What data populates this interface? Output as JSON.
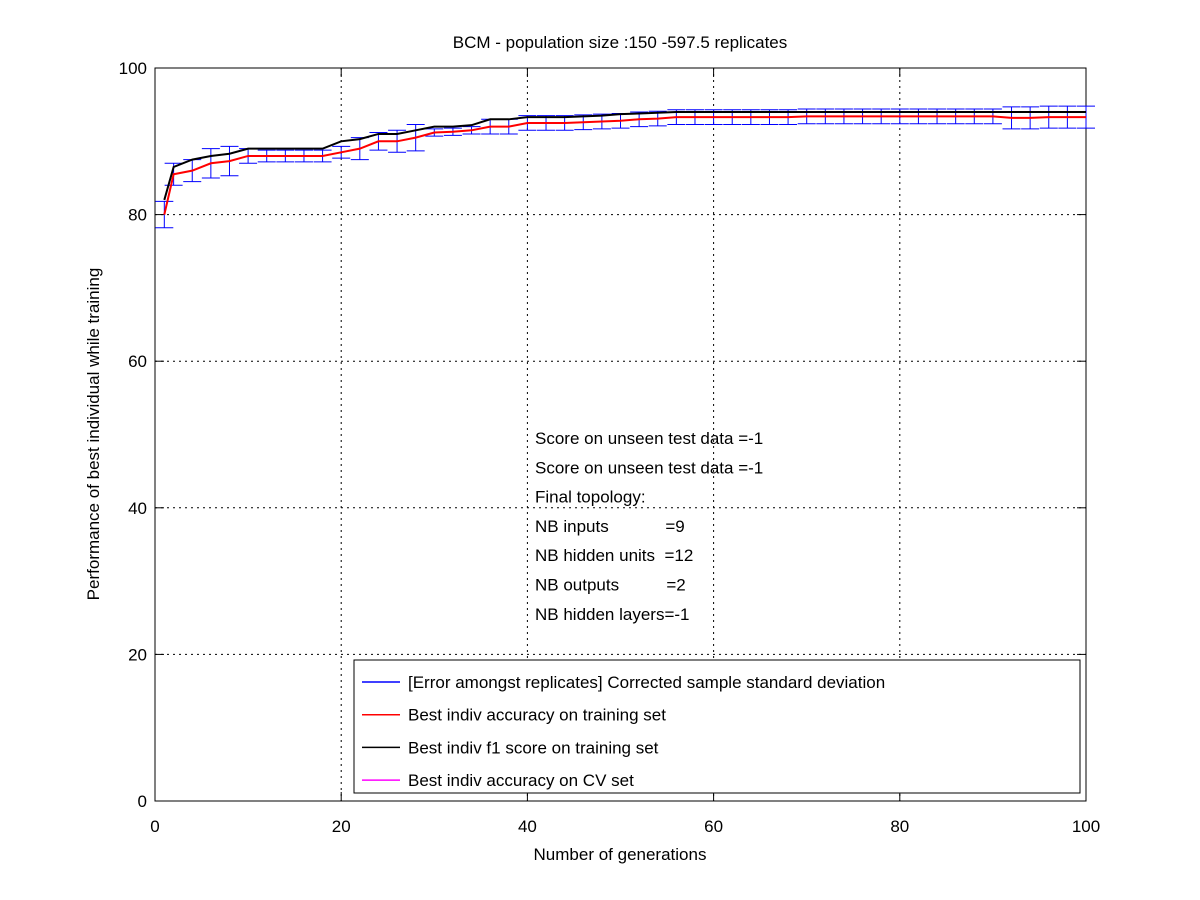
{
  "chart_data": {
    "type": "line",
    "title": "BCM - population size :150 -597.5 replicates",
    "xlabel": "Number of generations",
    "ylabel": "Performance of best individual while training",
    "xlim": [
      0,
      100
    ],
    "xticks": [
      0,
      20,
      40,
      60,
      80,
      100
    ],
    "ylim": [
      0,
      100
    ],
    "yticks": [
      0,
      20,
      40,
      60,
      80,
      100
    ],
    "grid": true,
    "legend": "lower right",
    "x": [
      1,
      2,
      4,
      6,
      8,
      10,
      12,
      14,
      16,
      18,
      20,
      22,
      24,
      26,
      28,
      30,
      32,
      34,
      36,
      38,
      40,
      42,
      44,
      46,
      48,
      50,
      52,
      54,
      56,
      58,
      60,
      62,
      64,
      66,
      68,
      70,
      72,
      74,
      76,
      78,
      80,
      82,
      84,
      86,
      88,
      90,
      92,
      94,
      96,
      98,
      100
    ],
    "error_bars": {
      "name": "[Error amongst replicates] Corrected sample standard deviation",
      "color": "#0000ff",
      "values": [
        1.8,
        1.5,
        1.5,
        2,
        2,
        1,
        0.8,
        0.8,
        0.8,
        0.8,
        0.8,
        1.5,
        1.2,
        1.5,
        1.8,
        0.5,
        0.5,
        0.5,
        1,
        1,
        1,
        1,
        1,
        1,
        1,
        1,
        1,
        1,
        1,
        1,
        1,
        1,
        1,
        1,
        1,
        1,
        1,
        1,
        1,
        1,
        1,
        1,
        1,
        1,
        1,
        1,
        1.5,
        1.5,
        1.5,
        1.5,
        1.5
      ]
    },
    "series": [
      {
        "name": "Best indiv accuracy on training set",
        "color": "#ff0000",
        "values": [
          80,
          85.5,
          86,
          87,
          87.3,
          88,
          88,
          88,
          88,
          88,
          88.5,
          89,
          90,
          90,
          90.5,
          91.2,
          91.3,
          91.5,
          92,
          92,
          92.5,
          92.5,
          92.5,
          92.6,
          92.7,
          92.8,
          93,
          93.1,
          93.3,
          93.3,
          93.3,
          93.3,
          93.3,
          93.3,
          93.3,
          93.4,
          93.4,
          93.4,
          93.4,
          93.4,
          93.4,
          93.4,
          93.4,
          93.4,
          93.4,
          93.4,
          93.2,
          93.2,
          93.3,
          93.3,
          93.3
        ]
      },
      {
        "name": "Best indiv f1 score on training set",
        "color": "#000000",
        "values": [
          82,
          86.5,
          87.5,
          88,
          88.3,
          89,
          89,
          89,
          89,
          89,
          90,
          90.3,
          91,
          91,
          91.5,
          92,
          92,
          92.2,
          93,
          93,
          93.3,
          93.3,
          93.3,
          93.4,
          93.5,
          93.7,
          93.8,
          93.9,
          94,
          94,
          94,
          94,
          94,
          94,
          94,
          94,
          94,
          94,
          94,
          94,
          94,
          94,
          94,
          94,
          94,
          94,
          94,
          94,
          94,
          94,
          94
        ]
      },
      {
        "name": "Best indiv accuracy on CV set",
        "color": "#ff00ff",
        "values": [
          null,
          null,
          null,
          null,
          null,
          null,
          null,
          null,
          null,
          null,
          null,
          null,
          null,
          null,
          null,
          null,
          null,
          null,
          null,
          null,
          null,
          null,
          null,
          null,
          null,
          null,
          null,
          null,
          null,
          null,
          null,
          null,
          null,
          null,
          null,
          null,
          null,
          null,
          null,
          null,
          null,
          null,
          null,
          null,
          null,
          null,
          null,
          null,
          null,
          null,
          null
        ]
      }
    ],
    "annotations": [
      "Score on unseen test data =-1",
      "Score on unseen test data =-1",
      "Final topology:",
      "NB inputs            =9",
      "NB hidden units  =12",
      "NB outputs          =2",
      "NB hidden layers=-1"
    ]
  }
}
